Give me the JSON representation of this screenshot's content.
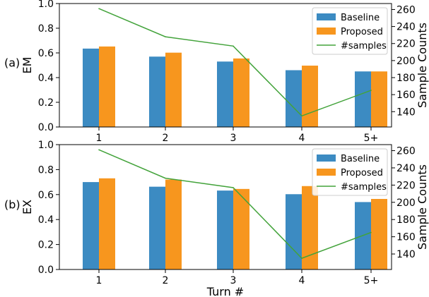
{
  "colors": {
    "baseline": "#3c8bc2",
    "proposed": "#f7961e",
    "samples": "#43a33b"
  },
  "chart_data": [
    {
      "type": "bar",
      "panel_label": "(a)",
      "categories": [
        "1",
        "2",
        "3",
        "4",
        "5+"
      ],
      "xlabel": "",
      "ylabel": "EM",
      "ylim": [
        0.0,
        1.0
      ],
      "yticks": [
        "0.0",
        "0.2",
        "0.4",
        "0.6",
        "0.8",
        "1.0"
      ],
      "series": [
        {
          "name": "Baseline",
          "values": [
            0.635,
            0.57,
            0.53,
            0.46,
            0.45
          ]
        },
        {
          "name": "Proposed",
          "values": [
            0.652,
            0.602,
            0.555,
            0.497,
            0.45
          ]
        }
      ],
      "secondary": {
        "type": "line",
        "name": "#samples",
        "ylabel": "Sample Counts",
        "ylim": [
          122,
          267
        ],
        "yticks": [
          "140",
          "160",
          "180",
          "200",
          "220",
          "240",
          "260"
        ],
        "values": [
          261,
          228,
          217,
          135,
          165
        ]
      },
      "legend": {
        "placement": "top-right",
        "entries": [
          "Baseline",
          "Proposed",
          "#samples"
        ]
      },
      "grid": false
    },
    {
      "type": "bar",
      "panel_label": "(b)",
      "categories": [
        "1",
        "2",
        "3",
        "4",
        "5+"
      ],
      "xlabel": "Turn #",
      "ylabel": "EX",
      "ylim": [
        0.0,
        1.0
      ],
      "yticks": [
        "0.0",
        "0.2",
        "0.4",
        "0.6",
        "0.8",
        "1.0"
      ],
      "series": [
        {
          "name": "Baseline",
          "values": [
            0.7,
            0.663,
            0.632,
            0.603,
            0.54
          ]
        },
        {
          "name": "Proposed",
          "values": [
            0.73,
            0.72,
            0.645,
            0.668,
            0.565
          ]
        }
      ],
      "secondary": {
        "type": "line",
        "name": "#samples",
        "ylabel": "Sample Counts",
        "ylim": [
          122,
          267
        ],
        "yticks": [
          "140",
          "160",
          "180",
          "200",
          "220",
          "240",
          "260"
        ],
        "values": [
          261,
          228,
          217,
          135,
          165
        ]
      },
      "legend": {
        "placement": "top-right",
        "entries": [
          "Baseline",
          "Proposed",
          "#samples"
        ]
      },
      "grid": false
    }
  ]
}
